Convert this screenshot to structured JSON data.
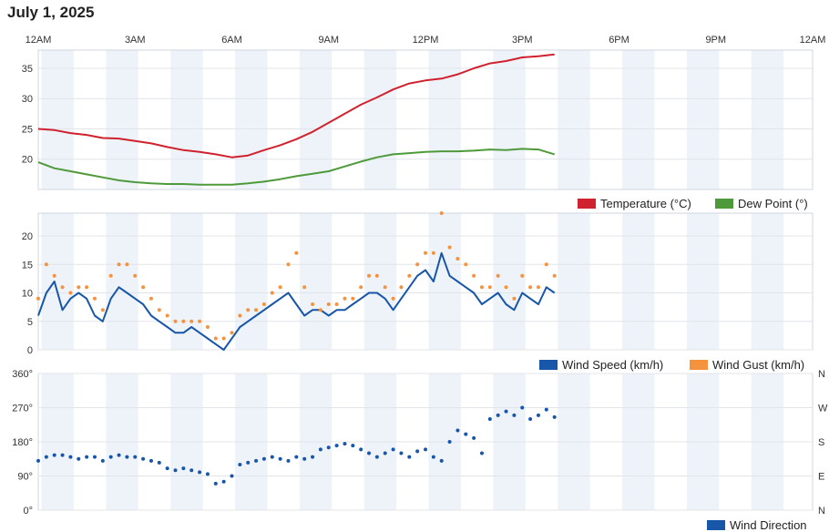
{
  "title": "July 1, 2025",
  "chart_data": [
    {
      "type": "line",
      "x_ticks": [
        "12AM",
        "3AM",
        "6AM",
        "9AM",
        "12PM",
        "3PM",
        "6PM",
        "9PM",
        "12AM"
      ],
      "x_range_hours": [
        0,
        24
      ],
      "ylim": [
        15,
        38
      ],
      "y_ticks": [
        20,
        25,
        30,
        35
      ],
      "grid": true,
      "legend_position": "bottom-right",
      "series": [
        {
          "name": "Temperature (°C)",
          "color": "#d0222e",
          "x": [
            0,
            0.5,
            1,
            1.5,
            2,
            2.5,
            3,
            3.5,
            4,
            4.5,
            5,
            5.5,
            6,
            6.5,
            7,
            7.5,
            8,
            8.5,
            9,
            9.5,
            10,
            10.5,
            11,
            11.5,
            12,
            12.5,
            13,
            13.5,
            14,
            14.5,
            15,
            15.5,
            16
          ],
          "values": [
            25,
            24.8,
            24.3,
            24,
            23.5,
            23.4,
            23.0,
            22.6,
            22.0,
            21.5,
            21.2,
            20.8,
            20.3,
            20.6,
            21.5,
            22.3,
            23.3,
            24.5,
            26,
            27.5,
            29,
            30.2,
            31.5,
            32.5,
            33,
            33.3,
            34,
            35,
            35.8,
            36.2,
            36.8,
            37.0,
            37.3
          ]
        },
        {
          "name": "Dew Point (°)",
          "color": "#4e9a3b",
          "x": [
            0,
            0.5,
            1,
            1.5,
            2,
            2.5,
            3,
            3.5,
            4,
            4.5,
            5,
            5.5,
            6,
            6.5,
            7,
            7.5,
            8,
            8.5,
            9,
            9.5,
            10,
            10.5,
            11,
            11.5,
            12,
            12.5,
            13,
            13.5,
            14,
            14.5,
            15,
            15.5,
            16
          ],
          "values": [
            19.5,
            18.5,
            18,
            17.5,
            17,
            16.5,
            16.2,
            16,
            15.9,
            15.9,
            15.8,
            15.8,
            15.8,
            16,
            16.3,
            16.7,
            17.2,
            17.6,
            18,
            18.8,
            19.6,
            20.3,
            20.8,
            21,
            21.2,
            21.3,
            21.3,
            21.4,
            21.6,
            21.5,
            21.7,
            21.6,
            20.8
          ]
        }
      ]
    },
    {
      "type": "line",
      "x_range_hours": [
        0,
        24
      ],
      "ylim": [
        0,
        24
      ],
      "y_ticks": [
        0,
        5,
        10,
        15,
        20
      ],
      "grid": true,
      "legend_position": "bottom-right",
      "series": [
        {
          "name": "Wind Speed (km/h)",
          "color": "#1756a9",
          "x": [
            0,
            0.25,
            0.5,
            0.75,
            1,
            1.25,
            1.5,
            1.75,
            2,
            2.25,
            2.5,
            2.75,
            3,
            3.25,
            3.5,
            3.75,
            4,
            4.25,
            4.5,
            4.75,
            5,
            5.25,
            5.5,
            5.75,
            6,
            6.25,
            6.5,
            6.75,
            7,
            7.25,
            7.5,
            7.75,
            8,
            8.25,
            8.5,
            8.75,
            9,
            9.25,
            9.5,
            9.75,
            10,
            10.25,
            10.5,
            10.75,
            11,
            11.25,
            11.5,
            11.75,
            12,
            12.25,
            12.5,
            12.75,
            13,
            13.25,
            13.5,
            13.75,
            14,
            14.25,
            14.5,
            14.75,
            15,
            15.25,
            15.5,
            15.75,
            16
          ],
          "values": [
            6,
            10,
            12,
            7,
            9,
            10,
            9,
            6,
            5,
            9,
            11,
            10,
            9,
            8,
            6,
            5,
            4,
            3,
            3,
            4,
            3,
            2,
            1,
            0,
            2,
            4,
            5,
            6,
            7,
            8,
            9,
            10,
            8,
            6,
            7,
            7,
            6,
            7,
            7,
            8,
            9,
            10,
            10,
            9,
            7,
            9,
            11,
            13,
            14,
            12,
            17,
            13,
            12,
            11,
            10,
            8,
            9,
            10,
            8,
            7,
            10,
            9,
            8,
            11,
            10
          ]
        },
        {
          "name": "Wind Gust (km/h)",
          "color": "#f5923e",
          "x": [
            0,
            0.25,
            0.5,
            0.75,
            1,
            1.25,
            1.5,
            1.75,
            2,
            2.25,
            2.5,
            2.75,
            3,
            3.25,
            3.5,
            3.75,
            4,
            4.25,
            4.5,
            4.75,
            5,
            5.25,
            5.5,
            5.75,
            6,
            6.25,
            6.5,
            6.75,
            7,
            7.25,
            7.5,
            7.75,
            8,
            8.25,
            8.5,
            8.75,
            9,
            9.25,
            9.5,
            9.75,
            10,
            10.25,
            10.5,
            10.75,
            11,
            11.25,
            11.5,
            11.75,
            12,
            12.25,
            12.5,
            12.75,
            13,
            13.25,
            13.5,
            13.75,
            14,
            14.25,
            14.5,
            14.75,
            15,
            15.25,
            15.5,
            15.75,
            16
          ],
          "values": [
            9,
            15,
            13,
            11,
            10,
            11,
            11,
            9,
            7,
            13,
            15,
            15,
            13,
            11,
            9,
            7,
            6,
            5,
            5,
            5,
            5,
            4,
            2,
            2,
            3,
            6,
            7,
            7,
            8,
            10,
            11,
            15,
            17,
            11,
            8,
            7,
            8,
            8,
            9,
            9,
            11,
            13,
            13,
            11,
            9,
            11,
            13,
            15,
            17,
            17,
            24,
            18,
            16,
            15,
            13,
            11,
            11,
            13,
            11,
            9,
            13,
            11,
            11,
            15,
            13
          ]
        }
      ]
    },
    {
      "type": "scatter",
      "x_range_hours": [
        0,
        24
      ],
      "ylim": [
        0,
        360
      ],
      "y_ticks_left": [
        "0°",
        "90°",
        "180°",
        "270°",
        "360°"
      ],
      "y_ticks_right": [
        "N",
        "E",
        "S",
        "W",
        "N"
      ],
      "grid": true,
      "legend_position": "bottom-right",
      "series": [
        {
          "name": "Wind Direction",
          "color": "#1756a9",
          "x": [
            0,
            0.25,
            0.5,
            0.75,
            1,
            1.25,
            1.5,
            1.75,
            2,
            2.25,
            2.5,
            2.75,
            3,
            3.25,
            3.5,
            3.75,
            4,
            4.25,
            4.5,
            4.75,
            5,
            5.25,
            5.5,
            5.75,
            6,
            6.25,
            6.5,
            6.75,
            7,
            7.25,
            7.5,
            7.75,
            8,
            8.25,
            8.5,
            8.75,
            9,
            9.25,
            9.5,
            9.75,
            10,
            10.25,
            10.5,
            10.75,
            11,
            11.25,
            11.5,
            11.75,
            12,
            12.25,
            12.5,
            12.75,
            13,
            13.25,
            13.5,
            13.75,
            14,
            14.25,
            14.5,
            14.75,
            15,
            15.25,
            15.5,
            15.75,
            16
          ],
          "values": [
            130,
            140,
            145,
            145,
            140,
            135,
            140,
            140,
            130,
            140,
            145,
            140,
            140,
            135,
            130,
            125,
            110,
            105,
            110,
            105,
            100,
            95,
            70,
            75,
            90,
            120,
            125,
            130,
            135,
            140,
            135,
            130,
            140,
            135,
            140,
            160,
            165,
            170,
            175,
            170,
            160,
            150,
            140,
            150,
            160,
            150,
            140,
            155,
            160,
            140,
            130,
            180,
            210,
            200,
            190,
            150,
            240,
            250,
            260,
            250,
            270,
            240,
            250,
            265,
            245
          ]
        }
      ]
    }
  ],
  "legend": {
    "temperature": "Temperature (°C)",
    "dew_point": "Dew Point (°)",
    "wind_speed": "Wind Speed (km/h)",
    "wind_gust": "Wind Gust (km/h)",
    "wind_direction": "Wind Direction"
  }
}
